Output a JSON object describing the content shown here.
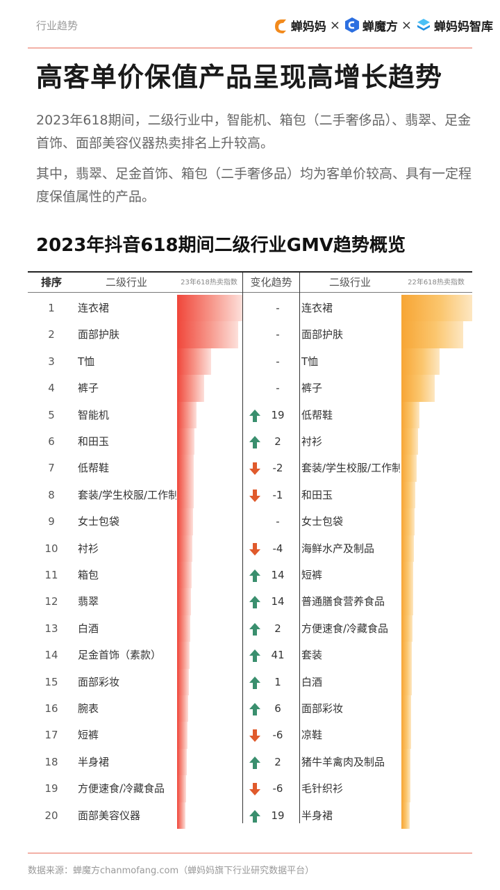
{
  "header": {
    "section_tag": "行业趋势",
    "brands": [
      "蝉妈妈",
      "蝉魔方",
      "蝉妈妈智库"
    ],
    "separator": "×",
    "colors": {
      "chanmama": "#f28a1c",
      "chanmofang": "#2c6fe0",
      "zhiku": "#2aa8f0"
    }
  },
  "title": "高客单价保值产品呈现高增长趋势",
  "paragraphs": [
    "2023年618期间，二级行业中，智能机、箱包（二手奢侈品）、翡翠、足金首饰、面部美容仪器热卖排名上升较高。",
    "其中，翡翠、足金首饰、箱包（二手奢侈品）均为客单价较高、具有一定程度保值属性的产品。"
  ],
  "chart_data": {
    "type": "table",
    "title": "2023年抖音618期间二级行业GMV趋势概览",
    "columns": {
      "rank": "排序",
      "category_23": "二级行业",
      "index_23": "23年618热卖指数",
      "change": "变化趋势",
      "category_22": "二级行业",
      "index_22": "22年618热卖指数"
    },
    "rows": [
      {
        "rank": "1",
        "cat23": "连衣裙",
        "idx23": 100,
        "dir": "none",
        "change": "-",
        "cat22": "连衣裙",
        "idx22": 100
      },
      {
        "rank": "2",
        "cat23": "面部护肤",
        "idx23": 94,
        "dir": "none",
        "change": "-",
        "cat22": "面部护肤",
        "idx22": 87
      },
      {
        "rank": "3",
        "cat23": "T恤",
        "idx23": 52,
        "dir": "none",
        "change": "-",
        "cat22": "T恤",
        "idx22": 54
      },
      {
        "rank": "4",
        "cat23": "裤子",
        "idx23": 42,
        "dir": "none",
        "change": "-",
        "cat22": "裤子",
        "idx22": 47
      },
      {
        "rank": "5",
        "cat23": "智能机",
        "idx23": 30,
        "dir": "up",
        "change": "19",
        "cat22": "低帮鞋",
        "idx22": 25
      },
      {
        "rank": "6",
        "cat23": "和田玉",
        "idx23": 27,
        "dir": "up",
        "change": "2",
        "cat22": "衬衫",
        "idx22": 24
      },
      {
        "rank": "7",
        "cat23": "低帮鞋",
        "idx23": 26,
        "dir": "down",
        "change": "-2",
        "cat22": "套装/学生校服/工作制服",
        "idx22": 22
      },
      {
        "rank": "8",
        "cat23": "套装/学生校服/工作制服",
        "idx23": 25,
        "dir": "down",
        "change": "-1",
        "cat22": "和田玉",
        "idx22": 20
      },
      {
        "rank": "9",
        "cat23": "女士包袋",
        "idx23": 24,
        "dir": "none",
        "change": "-",
        "cat22": "女士包袋",
        "idx22": 19
      },
      {
        "rank": "10",
        "cat23": "衬衫",
        "idx23": 23,
        "dir": "down",
        "change": "-4",
        "cat22": "海鲜水产及制品",
        "idx22": 18
      },
      {
        "rank": "11",
        "cat23": "箱包",
        "idx23": 22,
        "dir": "up",
        "change": "14",
        "cat22": "短裤",
        "idx22": 17
      },
      {
        "rank": "12",
        "cat23": "翡翠",
        "idx23": 21,
        "dir": "up",
        "change": "14",
        "cat22": "普通膳食营养食品",
        "idx22": 17
      },
      {
        "rank": "13",
        "cat23": "白酒",
        "idx23": 20,
        "dir": "up",
        "change": "2",
        "cat22": "方便速食/冷藏食品",
        "idx22": 16
      },
      {
        "rank": "14",
        "cat23": "足金首饰（素款）",
        "idx23": 19,
        "dir": "up",
        "change": "41",
        "cat22": "套装",
        "idx22": 15
      },
      {
        "rank": "15",
        "cat23": "面部彩妆",
        "idx23": 18,
        "dir": "up",
        "change": "1",
        "cat22": "白酒",
        "idx22": 15
      },
      {
        "rank": "16",
        "cat23": "腕表",
        "idx23": 17,
        "dir": "up",
        "change": "6",
        "cat22": "面部彩妆",
        "idx22": 14
      },
      {
        "rank": "17",
        "cat23": "短裤",
        "idx23": 16,
        "dir": "down",
        "change": "-6",
        "cat22": "凉鞋",
        "idx22": 14
      },
      {
        "rank": "18",
        "cat23": "半身裙",
        "idx23": 15,
        "dir": "up",
        "change": "2",
        "cat22": "猪牛羊禽肉及制品",
        "idx22": 13
      },
      {
        "rank": "19",
        "cat23": "方便速食/冷藏食品",
        "idx23": 14,
        "dir": "down",
        "change": "-6",
        "cat22": "毛针织衫",
        "idx22": 13
      },
      {
        "rank": "20",
        "cat23": "面部美容仪器",
        "idx23": 13,
        "dir": "up",
        "change": "19",
        "cat22": "半身裙",
        "idx22": 12
      }
    ],
    "colors": {
      "bar23": "#f0463a",
      "bar22": "#f7a534",
      "arrow_up": "#3a8f6e",
      "arrow_down": "#e05a2c"
    }
  },
  "footer": {
    "source": "数据来源：蝉魔方chanmofang.com（蝉妈妈旗下行业研究数据平台）"
  }
}
